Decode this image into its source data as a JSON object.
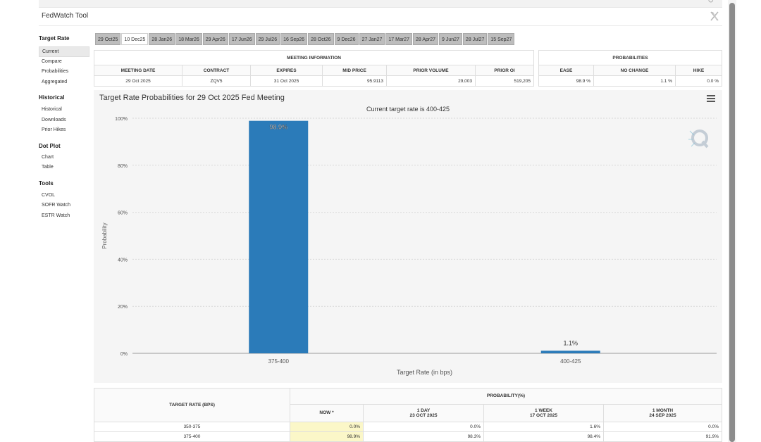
{
  "app": {
    "title": "FedWatch Tool"
  },
  "sidebar": {
    "sections": [
      {
        "heading": "Target Rate",
        "items": [
          {
            "label": "Current",
            "active": true
          },
          {
            "label": "Compare",
            "active": false
          },
          {
            "label": "Probabilities",
            "active": false
          },
          {
            "label": "Aggregated",
            "active": false
          }
        ]
      },
      {
        "heading": "Historical",
        "items": [
          {
            "label": "Historical",
            "active": false
          },
          {
            "label": "Downloads",
            "active": false
          },
          {
            "label": "Prior Hikes",
            "active": false
          }
        ]
      },
      {
        "heading": "Dot Plot",
        "items": [
          {
            "label": "Chart",
            "active": false
          },
          {
            "label": "Table",
            "active": false
          }
        ]
      },
      {
        "heading": "Tools",
        "items": [
          {
            "label": "CVOL",
            "active": false
          },
          {
            "label": "SOFR Watch",
            "active": false
          },
          {
            "label": "ESTR Watch",
            "active": false
          }
        ]
      }
    ]
  },
  "tabs": [
    {
      "label": "29 Oct25",
      "active": false
    },
    {
      "label": "10 Dec25",
      "active": true
    },
    {
      "label": "28 Jan26",
      "active": false
    },
    {
      "label": "18 Mar26",
      "active": false
    },
    {
      "label": "29 Apr26",
      "active": false
    },
    {
      "label": "17 Jun26",
      "active": false
    },
    {
      "label": "29 Jul26",
      "active": false
    },
    {
      "label": "16 Sep26",
      "active": false
    },
    {
      "label": "28 Oct26",
      "active": false
    },
    {
      "label": "9 Dec26",
      "active": false
    },
    {
      "label": "27 Jan27",
      "active": false
    },
    {
      "label": "17 Mar27",
      "active": false
    },
    {
      "label": "28 Apr27",
      "active": false
    },
    {
      "label": "9 Jun27",
      "active": false
    },
    {
      "label": "28 Jul27",
      "active": false
    },
    {
      "label": "15 Sep27",
      "active": false
    }
  ],
  "meeting_info": {
    "header": "MEETING INFORMATION",
    "columns": [
      "MEETING DATE",
      "CONTRACT",
      "EXPIRES",
      "MID PRICE",
      "PRIOR VOLUME",
      "PRIOR OI"
    ],
    "values": [
      "29 Oct 2025",
      "ZQV5",
      "31 Oct 2025",
      "95.9113",
      "29,003",
      "519,205"
    ]
  },
  "probabilities": {
    "header": "PROBABILITIES",
    "columns": [
      "EASE",
      "NO CHANGE",
      "HIKE"
    ],
    "values": [
      "98.9 %",
      "1.1 %",
      "0.0 %"
    ]
  },
  "chart": {
    "title": "Target Rate Probabilities for 29 Oct 2025 Fed Meeting",
    "subtitle": "Current target rate is 400-425"
  },
  "chart_data": {
    "type": "bar",
    "title": "Target Rate Probabilities for 29 Oct 2025 Fed Meeting",
    "subtitle": "Current target rate is 400-425",
    "categories": [
      "375-400",
      "400-425"
    ],
    "values": [
      98.9,
      1.1
    ],
    "data_labels": [
      "98.9%",
      "1.1%"
    ],
    "xlabel": "Target Rate (in bps)",
    "ylabel": "Probability",
    "ylim": [
      0,
      100
    ],
    "yticks": [
      0,
      20,
      40,
      60,
      80,
      100
    ],
    "ytick_labels": [
      "0%",
      "20%",
      "40%",
      "60%",
      "80%",
      "100%"
    ],
    "bar_color": "#2b7bb9",
    "grid": true
  },
  "bottom_table": {
    "rate_header": "TARGET RATE (BPS)",
    "prob_header": "PROBABILITY(%)",
    "columns": [
      {
        "title": "NOW *",
        "date": ""
      },
      {
        "title": "1 DAY",
        "date": "23 OCT 2025"
      },
      {
        "title": "1 WEEK",
        "date": "17 OCT 2025"
      },
      {
        "title": "1 MONTH",
        "date": "24 SEP 2025"
      }
    ],
    "rows": [
      {
        "rate": "350-375",
        "values": [
          "0.0%",
          "0.0%",
          "1.6%",
          "0.0%"
        ]
      },
      {
        "rate": "375-400",
        "values": [
          "98.9%",
          "98.3%",
          "98.4%",
          "91.9%"
        ]
      }
    ]
  }
}
